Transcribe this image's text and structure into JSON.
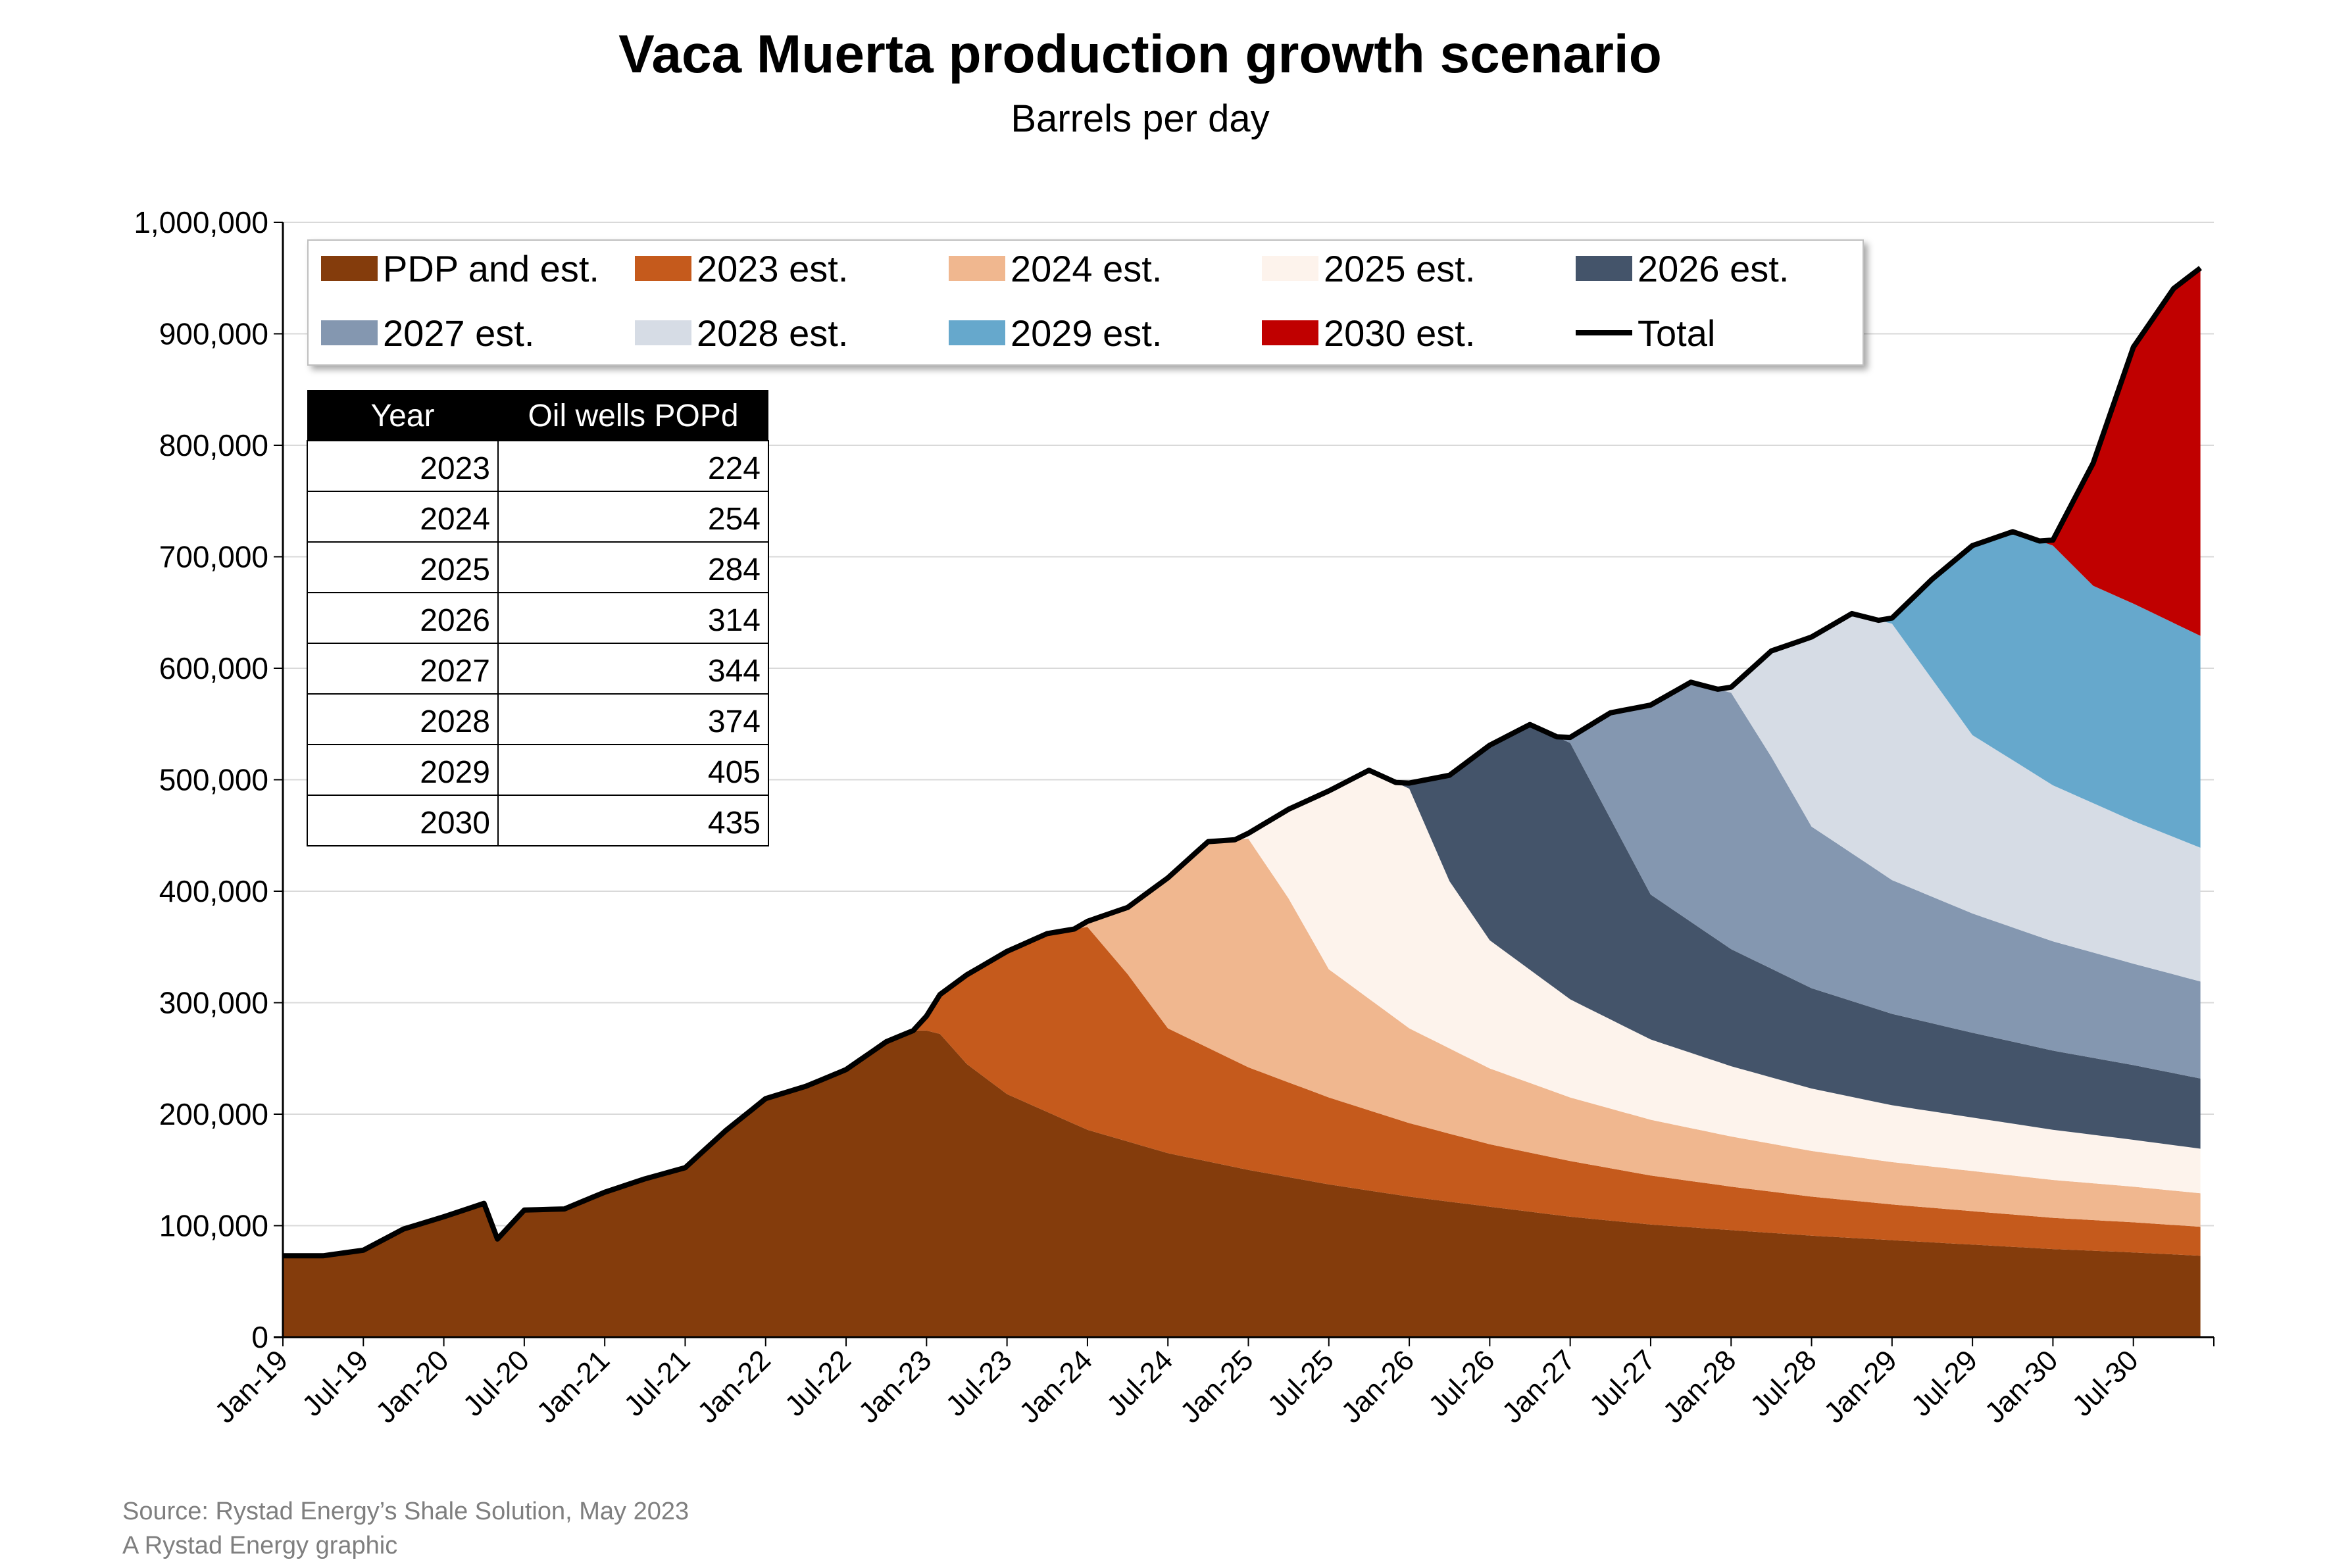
{
  "chart_data": {
    "type": "area",
    "title": "Vaca Muerta production growth scenario",
    "subtitle": "Barrels per day",
    "ylim": [
      0,
      1000000
    ],
    "y_ticks": [
      "0",
      "100,000",
      "200,000",
      "300,000",
      "400,000",
      "500,000",
      "600,000",
      "700,000",
      "800,000",
      "900,000",
      "1,000,000"
    ],
    "x_ticks": [
      "Jan-19",
      "Jul-19",
      "Jan-20",
      "Jul-20",
      "Jan-21",
      "Jul-21",
      "Jan-22",
      "Jul-22",
      "Jan-23",
      "Jul-23",
      "Jan-24",
      "Jul-24",
      "Jan-25",
      "Jul-25",
      "Jan-26",
      "Jul-26",
      "Jan-27",
      "Jul-27",
      "Jan-28",
      "Jul-28",
      "Jan-29",
      "Jul-29",
      "Jan-30",
      "Jul-30"
    ],
    "x_range": [
      "Jan-19",
      "Dec-30"
    ],
    "stacked": true,
    "grid": "horizontal",
    "legend_position": "top-left",
    "series": [
      {
        "name": "PDP and est.",
        "color": "#843C0C",
        "points": [
          [
            "Jan-19",
            73000
          ],
          [
            "Apr-19",
            73000
          ],
          [
            "Jul-19",
            78000
          ],
          [
            "Oct-19",
            97000
          ],
          [
            "Jan-20",
            108000
          ],
          [
            "Apr-20",
            120000
          ],
          [
            "May-20",
            88000
          ],
          [
            "Jul-20",
            114000
          ],
          [
            "Oct-20",
            115000
          ],
          [
            "Jan-21",
            130000
          ],
          [
            "Apr-21",
            142000
          ],
          [
            "Jul-21",
            152000
          ],
          [
            "Oct-21",
            185000
          ],
          [
            "Jan-22",
            214000
          ],
          [
            "Apr-22",
            225000
          ],
          [
            "Jul-22",
            240000
          ],
          [
            "Oct-22",
            265000
          ],
          [
            "Dec-22",
            275000
          ],
          [
            "Jan-23",
            275000
          ],
          [
            "Feb-23",
            272000
          ],
          [
            "Apr-23",
            245000
          ],
          [
            "Jul-23",
            218000
          ],
          [
            "Jan-24",
            186000
          ],
          [
            "Jul-24",
            165000
          ],
          [
            "Jan-25",
            150000
          ],
          [
            "Jul-25",
            137000
          ],
          [
            "Jan-26",
            126000
          ],
          [
            "Jul-26",
            117000
          ],
          [
            "Jan-27",
            108000
          ],
          [
            "Jul-27",
            101000
          ],
          [
            "Jan-28",
            96000
          ],
          [
            "Jul-28",
            91000
          ],
          [
            "Jan-29",
            87000
          ],
          [
            "Jul-29",
            83000
          ],
          [
            "Jan-30",
            79000
          ],
          [
            "Jul-30",
            76000
          ],
          [
            "Dec-30",
            73000
          ]
        ]
      },
      {
        "name": "2023 est.",
        "color": "#C55A1C",
        "points": [
          [
            "Jan-19",
            0
          ],
          [
            "Dec-22",
            0
          ],
          [
            "Jan-23",
            13000
          ],
          [
            "Apr-23",
            80000
          ],
          [
            "Jul-23",
            128000
          ],
          [
            "Oct-23",
            160000
          ],
          [
            "Jan-24",
            182000
          ],
          [
            "Apr-24",
            150000
          ],
          [
            "Jul-24",
            112000
          ],
          [
            "Jan-25",
            92000
          ],
          [
            "Jul-25",
            78000
          ],
          [
            "Jan-26",
            66000
          ],
          [
            "Jul-26",
            56000
          ],
          [
            "Jan-27",
            50000
          ],
          [
            "Jul-27",
            44000
          ],
          [
            "Jan-28",
            39000
          ],
          [
            "Jul-28",
            35000
          ],
          [
            "Jan-29",
            32000
          ],
          [
            "Jul-29",
            30000
          ],
          [
            "Jan-30",
            28000
          ],
          [
            "Jul-30",
            27000
          ],
          [
            "Dec-30",
            26000
          ]
        ]
      },
      {
        "name": "2024 est.",
        "color": "#F0B78F",
        "points": [
          [
            "Jan-19",
            0
          ],
          [
            "Dec-23",
            0
          ],
          [
            "Jan-24",
            5000
          ],
          [
            "Apr-24",
            60000
          ],
          [
            "Jul-24",
            135000
          ],
          [
            "Oct-24",
            185000
          ],
          [
            "Jan-25",
            205000
          ],
          [
            "Apr-25",
            165000
          ],
          [
            "Jul-25",
            115000
          ],
          [
            "Jan-26",
            85000
          ],
          [
            "Jul-26",
            68000
          ],
          [
            "Jan-27",
            57000
          ],
          [
            "Jul-27",
            50000
          ],
          [
            "Jan-28",
            45000
          ],
          [
            "Jul-28",
            41000
          ],
          [
            "Jan-29",
            38000
          ],
          [
            "Jul-29",
            36000
          ],
          [
            "Jan-30",
            34000
          ],
          [
            "Jul-30",
            32000
          ],
          [
            "Dec-30",
            30000
          ]
        ]
      },
      {
        "name": "2025 est.",
        "color": "#FDF3EC",
        "points": [
          [
            "Jan-19",
            0
          ],
          [
            "Dec-24",
            0
          ],
          [
            "Jan-25",
            5000
          ],
          [
            "Apr-25",
            80000
          ],
          [
            "Jul-25",
            160000
          ],
          [
            "Oct-25",
            205000
          ],
          [
            "Jan-26",
            215000
          ],
          [
            "Apr-26",
            150000
          ],
          [
            "Jul-26",
            115000
          ],
          [
            "Jan-27",
            88000
          ],
          [
            "Jul-27",
            72000
          ],
          [
            "Jan-28",
            63000
          ],
          [
            "Jul-28",
            56000
          ],
          [
            "Jan-29",
            51000
          ],
          [
            "Jul-29",
            48000
          ],
          [
            "Jan-30",
            45000
          ],
          [
            "Jul-30",
            42000
          ],
          [
            "Dec-30",
            40000
          ]
        ]
      },
      {
        "name": "2026 est.",
        "color": "#44546A",
        "points": [
          [
            "Jan-19",
            0
          ],
          [
            "Dec-25",
            0
          ],
          [
            "Jan-26",
            5000
          ],
          [
            "Apr-26",
            95000
          ],
          [
            "Jul-26",
            175000
          ],
          [
            "Oct-26",
            220000
          ],
          [
            "Jan-27",
            230000
          ],
          [
            "Apr-27",
            180000
          ],
          [
            "Jul-27",
            130000
          ],
          [
            "Jan-28",
            105000
          ],
          [
            "Jul-28",
            90000
          ],
          [
            "Jan-29",
            82000
          ],
          [
            "Jul-29",
            76000
          ],
          [
            "Jan-30",
            71000
          ],
          [
            "Jul-30",
            67000
          ],
          [
            "Dec-30",
            63000
          ]
        ]
      },
      {
        "name": "2027 est.",
        "color": "#8497B0",
        "points": [
          [
            "Jan-19",
            0
          ],
          [
            "Dec-26",
            0
          ],
          [
            "Jan-27",
            5000
          ],
          [
            "Apr-27",
            95000
          ],
          [
            "Jul-27",
            170000
          ],
          [
            "Oct-27",
            215000
          ],
          [
            "Jan-28",
            230000
          ],
          [
            "Apr-28",
            190000
          ],
          [
            "Jul-28",
            145000
          ],
          [
            "Jan-29",
            120000
          ],
          [
            "Jul-29",
            107000
          ],
          [
            "Jan-30",
            98000
          ],
          [
            "Jul-30",
            91000
          ],
          [
            "Dec-30",
            87000
          ]
        ]
      },
      {
        "name": "2028 est.",
        "color": "#D6DCE5",
        "points": [
          [
            "Jan-19",
            0
          ],
          [
            "Dec-27",
            0
          ],
          [
            "Jan-28",
            5000
          ],
          [
            "Apr-28",
            95000
          ],
          [
            "Jul-28",
            170000
          ],
          [
            "Oct-28",
            215000
          ],
          [
            "Jan-29",
            230000
          ],
          [
            "Apr-29",
            195000
          ],
          [
            "Jul-29",
            160000
          ],
          [
            "Jan-30",
            140000
          ],
          [
            "Jul-30",
            128000
          ],
          [
            "Dec-30",
            120000
          ]
        ]
      },
      {
        "name": "2029 est.",
        "color": "#66A8CC",
        "points": [
          [
            "Jan-19",
            0
          ],
          [
            "Dec-28",
            0
          ],
          [
            "Jan-29",
            5000
          ],
          [
            "Apr-29",
            90000
          ],
          [
            "Jul-29",
            170000
          ],
          [
            "Oct-29",
            205000
          ],
          [
            "Jan-30",
            215000
          ],
          [
            "Apr-30",
            195000
          ],
          [
            "Jul-30",
            195000
          ],
          [
            "Dec-30",
            190000
          ]
        ]
      },
      {
        "name": "2030 est.",
        "color": "#C00000",
        "points": [
          [
            "Jan-19",
            0
          ],
          [
            "Dec-29",
            0
          ],
          [
            "Jan-30",
            5000
          ],
          [
            "Apr-30",
            110000
          ],
          [
            "Jul-30",
            230000
          ],
          [
            "Oct-30",
            300000
          ],
          [
            "Dec-30",
            330000
          ]
        ]
      }
    ],
    "total_series": {
      "name": "Total",
      "color": "#000000"
    },
    "legend": [
      "PDP and est.",
      "2023 est.",
      "2024 est.",
      "2025 est.",
      "2026 est.",
      "2027 est.",
      "2028 est.",
      "2029 est.",
      "2030 est.",
      "Total"
    ],
    "table": {
      "headers": [
        "Year",
        "Oil wells POPd"
      ],
      "rows": [
        [
          "2023",
          "224"
        ],
        [
          "2024",
          "254"
        ],
        [
          "2025",
          "284"
        ],
        [
          "2026",
          "314"
        ],
        [
          "2027",
          "344"
        ],
        [
          "2028",
          "374"
        ],
        [
          "2029",
          "405"
        ],
        [
          "2030",
          "435"
        ]
      ]
    },
    "source_lines": [
      "Source: Rystad Energy’s Shale Solution, May 2023",
      "A Rystad Energy graphic"
    ]
  }
}
